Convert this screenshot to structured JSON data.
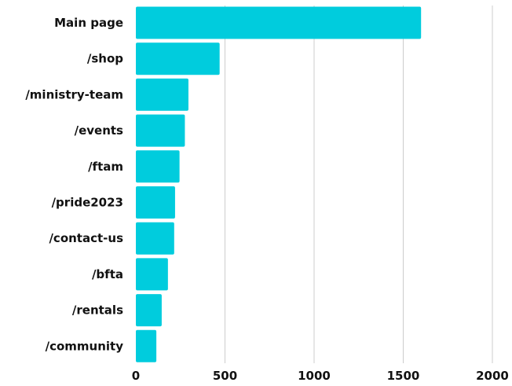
{
  "chart_data": {
    "type": "bar",
    "orientation": "horizontal",
    "categories": [
      "Main page",
      "/shop",
      "/ministry-team",
      "/events",
      "/ftam",
      "/pride2023",
      "/contact-us",
      "/bfta",
      "/rentals",
      "/community"
    ],
    "values": [
      1600,
      470,
      295,
      275,
      245,
      220,
      215,
      180,
      145,
      115
    ],
    "xlim": [
      0,
      2000
    ],
    "xticks": [
      0,
      500,
      1000,
      1500,
      2000
    ],
    "xtick_labels": [
      "0",
      "500",
      "1000",
      "1500",
      "2000"
    ],
    "grid": "vertical",
    "bar_color": "#00CCDD",
    "gridline_color": "#CCCCCC",
    "text_color": "#111111"
  }
}
